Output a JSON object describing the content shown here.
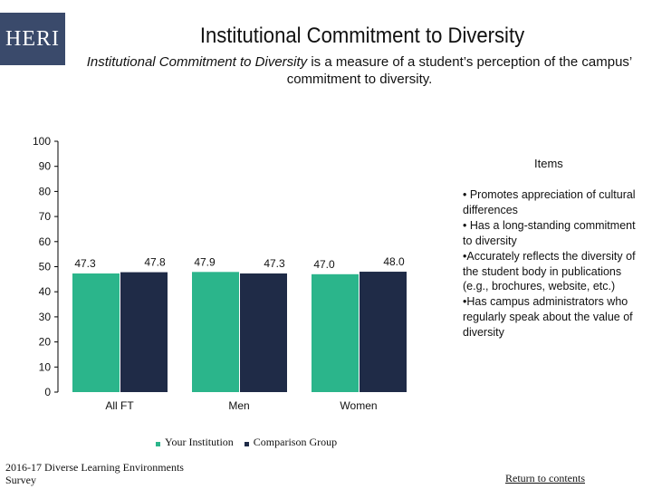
{
  "header": {
    "logo_text": "HERI",
    "title": "Institutional Commitment to Diversity",
    "subtitle_term": "Institutional Commitment to Diversity",
    "subtitle_rest": " is a measure of a student’s perception of the campus’ commitment to diversity."
  },
  "items_panel": {
    "title": "Items",
    "lines": [
      "• Promotes appreciation of cultural differences",
      "• Has a long-standing commitment to diversity",
      "•Accurately reflects the diversity of the student body in publications (e.g., brochures, website, etc.)",
      "•Has campus administrators who regularly speak about the value of diversity"
    ]
  },
  "legend": {
    "your_institution": "Your Institution",
    "comparison_group": "Comparison Group"
  },
  "footer": {
    "source": "2016-17 Diverse Learning Environments Survey",
    "return_link": "Return to contents"
  },
  "colors": {
    "your_institution": "#2bb58b",
    "comparison_group": "#1f2b47",
    "logo_bg": "#3a4a6b"
  },
  "chart_data": {
    "type": "bar",
    "title": "Institutional Commitment to Diversity",
    "xlabel": "",
    "ylabel": "",
    "ylim": [
      0,
      100
    ],
    "yticks": [
      0,
      10,
      20,
      30,
      40,
      50,
      60,
      70,
      80,
      90,
      100
    ],
    "categories": [
      "All FT",
      "Men",
      "Women"
    ],
    "series": [
      {
        "name": "Your Institution",
        "values": [
          47.3,
          47.9,
          47.0
        ],
        "labels": [
          "47.3",
          "47.9",
          "47.0"
        ]
      },
      {
        "name": "Comparison Group",
        "values": [
          47.8,
          47.3,
          48.0
        ],
        "labels": [
          "47.8",
          "47.3",
          "48.0"
        ]
      }
    ]
  }
}
